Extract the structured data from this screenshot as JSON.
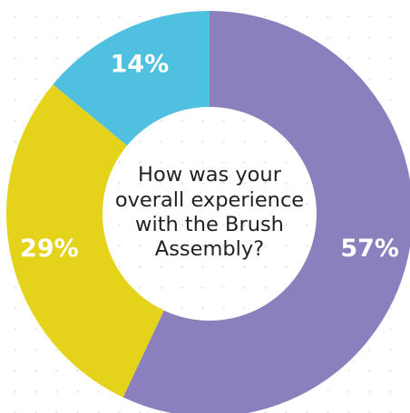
{
  "chart_data": {
    "type": "pie",
    "title": "How was your overall experience with the Brush Assembly?",
    "labels": [
      "57%",
      "29%",
      "14%"
    ],
    "values": [
      57,
      29,
      14
    ],
    "colors": [
      "#8b7fbd",
      "#e5d31b",
      "#4fc0e0"
    ],
    "donut": true,
    "legend": "none"
  }
}
